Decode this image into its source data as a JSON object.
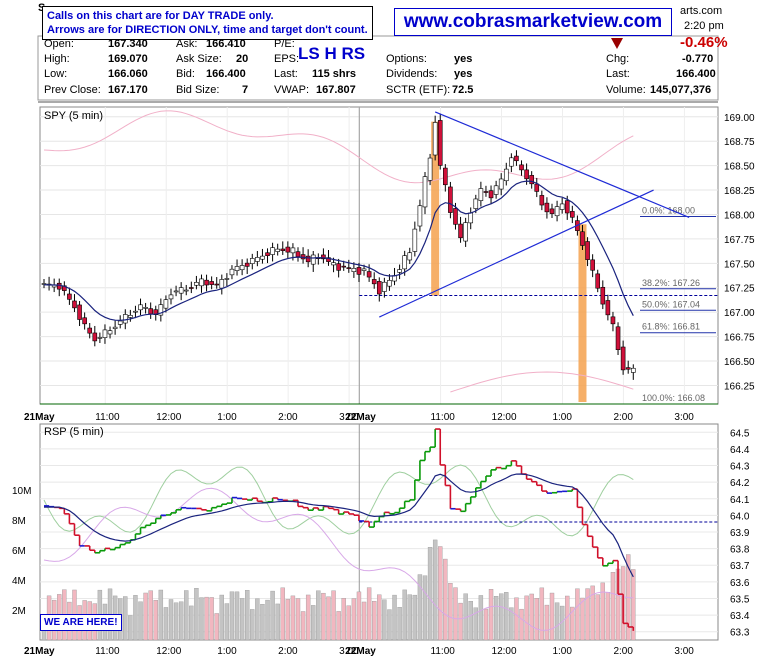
{
  "header": {
    "symbol": "S",
    "time": "2:20 pm",
    "source_fragment": "arts.com",
    "notice_line1": "Calls on this chart are for DAY TRADE only.",
    "notice_line2": "Arrows are for DIRECTION ONLY, time and target don't count.",
    "url": "www.cobrasmarketview.com",
    "signals": "LS H RS",
    "change_pct": "-0.46%",
    "chg_label": "Chg:",
    "chg_value": "-0.770",
    "last_label": "Last:",
    "last_value": "166.400",
    "volume_label": "Volume:",
    "volume_value": "145,077,376",
    "colors": {
      "down": "#cc0000",
      "link": "#0000cc",
      "arrow": "#990000"
    },
    "arrow_icon": "down-triangle-icon"
  },
  "quote": {
    "open_label": "Open:",
    "open": "167.340",
    "high_label": "High:",
    "high": "169.070",
    "low_label": "Low:",
    "low": "166.060",
    "prev_label": "Prev Close:",
    "prev": "167.170",
    "ask_label": "Ask:",
    "ask": "166.410",
    "asksize_label": "Ask Size:",
    "asksize": "20",
    "bid_label": "Bid:",
    "bid": "166.400",
    "bidsize_label": "Bid Size:",
    "bidsize": "7",
    "pe_label": "P/E:",
    "eps_label": "EPS:",
    "lastsh_label": "Last:",
    "lastsh": "115 shrs",
    "vwap_label": "VWAP:",
    "vwap": "167.807",
    "options_label": "Options:",
    "options": "yes",
    "dividends_label": "Dividends:",
    "dividends": "yes",
    "sctr_label": "SCTR (ETF):",
    "sctr": "72.5"
  },
  "we_are_here": "WE ARE HERE!",
  "chart_data": [
    {
      "type": "candlestick",
      "title": "SPY (5 min)",
      "ylim": [
        166.06,
        169.1
      ],
      "yticks": [
        "169.00",
        "168.75",
        "168.50",
        "168.25",
        "168.00",
        "167.75",
        "167.50",
        "167.25",
        "167.00",
        "166.75",
        "166.50",
        "166.25"
      ],
      "xticks": [
        "21May",
        "11:00",
        "12:00",
        "1:00",
        "2:00",
        "3:00",
        "22May",
        "11:00",
        "12:00",
        "1:00",
        "2:00",
        "3:00"
      ],
      "close_anchors": [
        [
          0,
          167.28
        ],
        [
          3,
          167.27
        ],
        [
          6,
          167.05
        ],
        [
          8,
          166.85
        ],
        [
          10,
          166.72
        ],
        [
          13,
          166.82
        ],
        [
          16,
          166.95
        ],
        [
          19,
          167.06
        ],
        [
          22,
          166.98
        ],
        [
          25,
          167.2
        ],
        [
          28,
          167.24
        ],
        [
          31,
          167.32
        ],
        [
          34,
          167.27
        ],
        [
          37,
          167.43
        ],
        [
          40,
          167.5
        ],
        [
          43,
          167.58
        ],
        [
          46,
          167.65
        ],
        [
          49,
          167.62
        ],
        [
          52,
          167.52
        ],
        [
          54,
          167.58
        ],
        [
          57,
          167.48
        ],
        [
          60,
          167.44
        ],
        [
          63,
          167.42
        ],
        [
          66,
          167.22
        ],
        [
          69,
          167.38
        ],
        [
          72,
          167.62
        ],
        [
          74,
          168.1
        ],
        [
          76,
          168.6
        ],
        [
          77,
          168.95
        ],
        [
          78,
          168.5
        ],
        [
          80,
          168.05
        ],
        [
          82,
          167.75
        ],
        [
          84,
          168.05
        ],
        [
          86,
          168.25
        ],
        [
          88,
          168.2
        ],
        [
          90,
          168.35
        ],
        [
          92,
          168.6
        ],
        [
          94,
          168.45
        ],
        [
          96,
          168.32
        ],
        [
          98,
          168.1
        ],
        [
          100,
          168.0
        ],
        [
          102,
          168.12
        ],
        [
          104,
          167.95
        ],
        [
          106,
          167.7
        ],
        [
          108,
          167.4
        ],
        [
          110,
          167.1
        ],
        [
          112,
          166.85
        ],
        [
          114,
          166.42
        ],
        [
          116,
          166.4
        ]
      ],
      "fib_levels": [
        {
          "label": "0.0%: 168.00",
          "value": 168.0
        },
        {
          "label": "38.2%: 167.26",
          "value": 167.26
        },
        {
          "label": "50.0%: 167.04",
          "value": 167.04
        },
        {
          "label": "61.8%: 166.81",
          "value": 166.81
        },
        {
          "label": "100.0%: 166.08",
          "value": 166.08
        }
      ],
      "reference_line": 167.17,
      "trendlines": [
        {
          "name": "upper",
          "from": [
            77,
            169.05
          ],
          "to": [
            127,
            167.97
          ]
        },
        {
          "name": "lower",
          "from": [
            66,
            166.95
          ],
          "to": [
            120,
            168.25
          ]
        }
      ],
      "highlight_bars": [
        77,
        106
      ],
      "legend": "none",
      "grid": true
    },
    {
      "type": "line",
      "title": "RSP (5 min)",
      "ylim": [
        63.25,
        64.55
      ],
      "yticks": [
        "64.5",
        "64.4",
        "64.3",
        "64.2",
        "64.1",
        "64.0",
        "63.9",
        "63.8",
        "63.7",
        "63.6",
        "63.5",
        "63.4",
        "63.3"
      ],
      "volume_ticks": [
        "10M",
        "8M",
        "6M",
        "4M",
        "2M"
      ],
      "volume_max": 10000000,
      "xticks": [
        "21May",
        "11:00",
        "12:00",
        "1:00",
        "2:00",
        "3:00",
        "22May",
        "11:00",
        "12:00",
        "1:00",
        "2:00",
        "3:00"
      ],
      "reference_line": 63.96,
      "close_anchors": [
        [
          0,
          64.05
        ],
        [
          3,
          64.05
        ],
        [
          5,
          63.95
        ],
        [
          7,
          63.82
        ],
        [
          10,
          63.78
        ],
        [
          13,
          63.8
        ],
        [
          16,
          63.83
        ],
        [
          19,
          63.92
        ],
        [
          22,
          63.98
        ],
        [
          25,
          64.02
        ],
        [
          28,
          64.05
        ],
        [
          31,
          64.03
        ],
        [
          34,
          64.05
        ],
        [
          37,
          64.1
        ],
        [
          40,
          64.1
        ],
        [
          43,
          64.08
        ],
        [
          46,
          64.1
        ],
        [
          49,
          64.08
        ],
        [
          52,
          64.03
        ],
        [
          55,
          64.05
        ],
        [
          58,
          64.02
        ],
        [
          61,
          64.0
        ],
        [
          64,
          63.93
        ],
        [
          66,
          64.0
        ],
        [
          69,
          64.02
        ],
        [
          72,
          64.1
        ],
        [
          74,
          64.33
        ],
        [
          76,
          64.42
        ],
        [
          77,
          64.52
        ],
        [
          78,
          64.3
        ],
        [
          80,
          64.05
        ],
        [
          82,
          64.02
        ],
        [
          84,
          64.12
        ],
        [
          86,
          64.2
        ],
        [
          88,
          64.28
        ],
        [
          90,
          64.28
        ],
        [
          92,
          64.33
        ],
        [
          94,
          64.25
        ],
        [
          96,
          64.2
        ],
        [
          98,
          64.15
        ],
        [
          100,
          64.13
        ],
        [
          102,
          64.15
        ],
        [
          104,
          64.15
        ],
        [
          106,
          63.95
        ],
        [
          108,
          63.8
        ],
        [
          110,
          63.7
        ],
        [
          112,
          63.72
        ],
        [
          114,
          63.35
        ],
        [
          116,
          63.3
        ]
      ],
      "legend": "none",
      "grid": true
    }
  ]
}
